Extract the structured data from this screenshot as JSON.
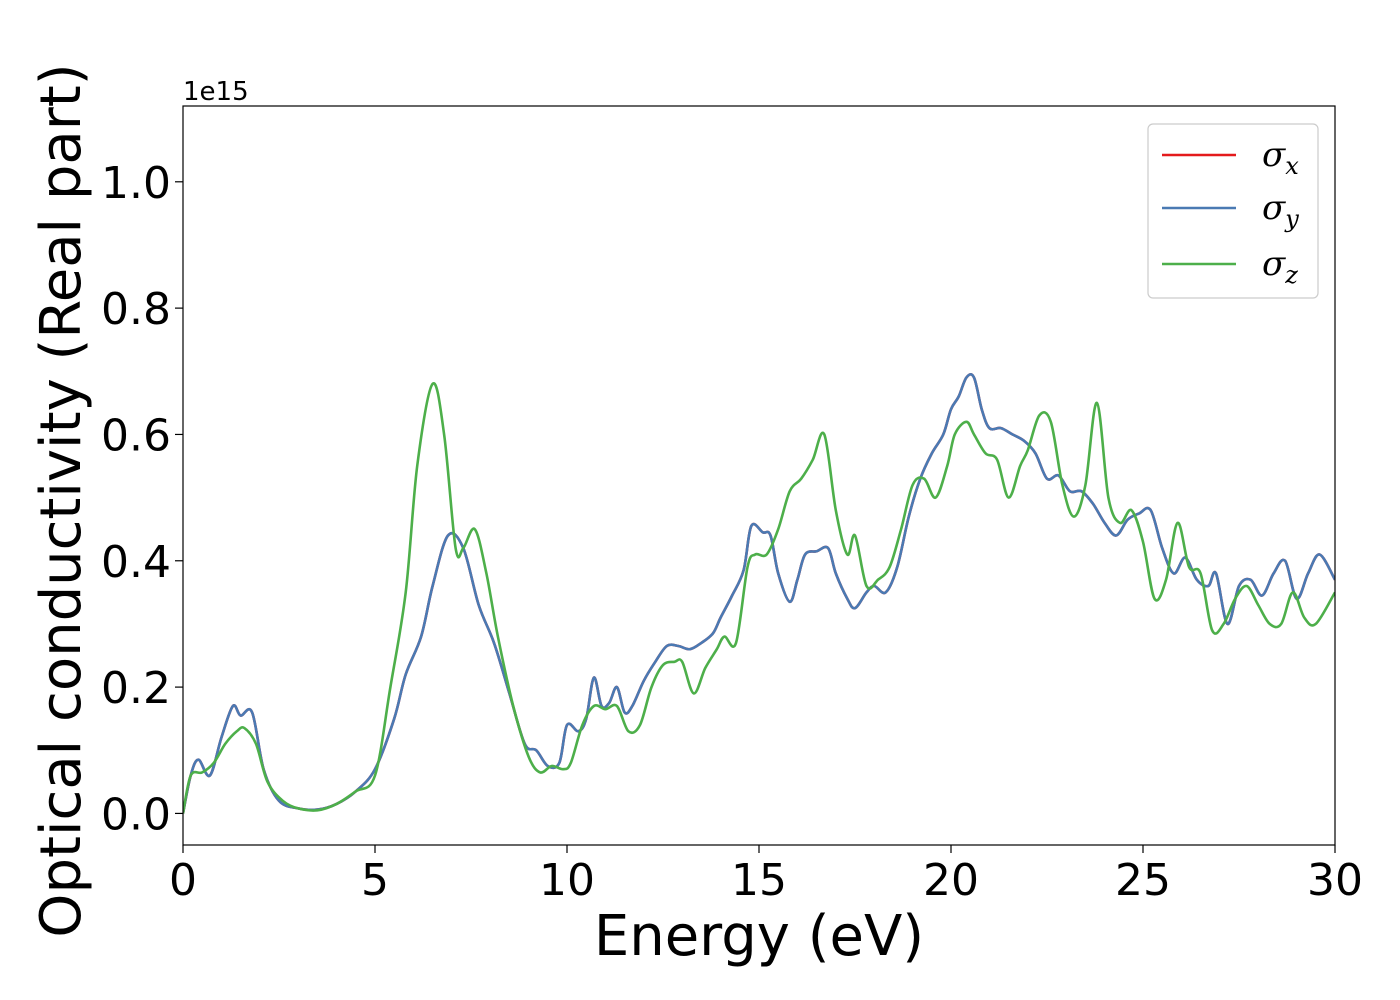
{
  "chart_data": {
    "type": "line",
    "xlabel": "Energy (eV)",
    "ylabel": "Optical conductivity (Real part)",
    "y_offset_text": "1e15",
    "xlim": [
      0,
      30
    ],
    "ylim": [
      -0.05,
      1.12
    ],
    "x_ticks": [
      0,
      5,
      10,
      15,
      20,
      25,
      30
    ],
    "x_tick_labels": [
      "0",
      "5",
      "10",
      "15",
      "20",
      "25",
      "30"
    ],
    "y_ticks": [
      0.0,
      0.2,
      0.4,
      0.6,
      0.8,
      1.0
    ],
    "y_tick_labels": [
      "0.0",
      "0.2",
      "0.4",
      "0.6",
      "0.8",
      "1.0"
    ],
    "grid": false,
    "legend_position": "top-right",
    "series": [
      {
        "name": "σ",
        "sub": "x",
        "color": "#e41a1c",
        "drawn_under": true,
        "x": [
          0,
          0.2,
          0.4,
          0.7,
          1.0,
          1.3,
          1.5,
          1.8,
          2.1,
          2.5,
          3.0,
          3.5,
          4.0,
          4.5,
          5.0,
          5.5,
          5.8,
          6.2,
          6.5,
          6.9,
          7.3,
          7.7,
          8.1,
          8.5,
          8.9,
          9.2,
          9.5,
          9.8,
          10.0,
          10.3,
          10.5,
          10.7,
          10.9,
          11.1,
          11.3,
          11.5,
          11.7,
          12.0,
          12.3,
          12.6,
          12.9,
          13.2,
          13.5,
          13.8,
          14.0,
          14.3,
          14.6,
          14.8,
          15.1,
          15.3,
          15.5,
          15.8,
          16.0,
          16.2,
          16.5,
          16.8,
          17.0,
          17.3,
          17.5,
          17.8,
          18.0,
          18.3,
          18.6,
          18.9,
          19.2,
          19.5,
          19.8,
          20.0,
          20.2,
          20.4,
          20.6,
          20.8,
          21.0,
          21.3,
          21.6,
          21.9,
          22.2,
          22.5,
          22.8,
          23.1,
          23.4,
          23.7,
          24.0,
          24.3,
          24.6,
          24.9,
          25.2,
          25.5,
          25.8,
          26.1,
          26.4,
          26.7,
          26.9,
          27.2,
          27.5,
          27.8,
          28.1,
          28.4,
          28.7,
          29.0,
          29.3,
          29.6,
          30.0
        ],
        "y": [
          0.0,
          0.06,
          0.085,
          0.06,
          0.12,
          0.17,
          0.155,
          0.16,
          0.07,
          0.02,
          0.008,
          0.006,
          0.015,
          0.035,
          0.07,
          0.15,
          0.22,
          0.28,
          0.36,
          0.44,
          0.42,
          0.33,
          0.27,
          0.19,
          0.11,
          0.1,
          0.075,
          0.08,
          0.14,
          0.13,
          0.15,
          0.215,
          0.17,
          0.175,
          0.2,
          0.16,
          0.17,
          0.21,
          0.24,
          0.265,
          0.265,
          0.26,
          0.27,
          0.285,
          0.31,
          0.345,
          0.385,
          0.455,
          0.445,
          0.44,
          0.38,
          0.335,
          0.37,
          0.41,
          0.415,
          0.42,
          0.38,
          0.34,
          0.325,
          0.35,
          0.36,
          0.35,
          0.39,
          0.47,
          0.53,
          0.57,
          0.6,
          0.64,
          0.66,
          0.69,
          0.69,
          0.64,
          0.61,
          0.61,
          0.6,
          0.59,
          0.57,
          0.53,
          0.535,
          0.51,
          0.51,
          0.49,
          0.46,
          0.44,
          0.465,
          0.475,
          0.48,
          0.42,
          0.38,
          0.405,
          0.37,
          0.36,
          0.38,
          0.3,
          0.36,
          0.37,
          0.345,
          0.38,
          0.4,
          0.34,
          0.38,
          0.41,
          0.37
        ]
      },
      {
        "name": "σ",
        "sub": "y",
        "color": "#4a7ab3",
        "x": [
          0,
          0.2,
          0.4,
          0.7,
          1.0,
          1.3,
          1.5,
          1.8,
          2.1,
          2.5,
          3.0,
          3.5,
          4.0,
          4.5,
          5.0,
          5.5,
          5.8,
          6.2,
          6.5,
          6.9,
          7.3,
          7.7,
          8.1,
          8.5,
          8.9,
          9.2,
          9.5,
          9.8,
          10.0,
          10.3,
          10.5,
          10.7,
          10.9,
          11.1,
          11.3,
          11.5,
          11.7,
          12.0,
          12.3,
          12.6,
          12.9,
          13.2,
          13.5,
          13.8,
          14.0,
          14.3,
          14.6,
          14.8,
          15.1,
          15.3,
          15.5,
          15.8,
          16.0,
          16.2,
          16.5,
          16.8,
          17.0,
          17.3,
          17.5,
          17.8,
          18.0,
          18.3,
          18.6,
          18.9,
          19.2,
          19.5,
          19.8,
          20.0,
          20.2,
          20.4,
          20.6,
          20.8,
          21.0,
          21.3,
          21.6,
          21.9,
          22.2,
          22.5,
          22.8,
          23.1,
          23.4,
          23.7,
          24.0,
          24.3,
          24.6,
          24.9,
          25.2,
          25.5,
          25.8,
          26.1,
          26.4,
          26.7,
          26.9,
          27.2,
          27.5,
          27.8,
          28.1,
          28.4,
          28.7,
          29.0,
          29.3,
          29.6,
          30.0
        ],
        "y": [
          0.0,
          0.06,
          0.085,
          0.06,
          0.12,
          0.17,
          0.155,
          0.16,
          0.07,
          0.02,
          0.008,
          0.006,
          0.015,
          0.035,
          0.07,
          0.15,
          0.22,
          0.28,
          0.36,
          0.44,
          0.42,
          0.33,
          0.27,
          0.19,
          0.11,
          0.1,
          0.075,
          0.08,
          0.14,
          0.13,
          0.15,
          0.215,
          0.17,
          0.175,
          0.2,
          0.16,
          0.17,
          0.21,
          0.24,
          0.265,
          0.265,
          0.26,
          0.27,
          0.285,
          0.31,
          0.345,
          0.385,
          0.455,
          0.445,
          0.44,
          0.38,
          0.335,
          0.37,
          0.41,
          0.415,
          0.42,
          0.38,
          0.34,
          0.325,
          0.35,
          0.36,
          0.35,
          0.39,
          0.47,
          0.53,
          0.57,
          0.6,
          0.64,
          0.66,
          0.69,
          0.69,
          0.64,
          0.61,
          0.61,
          0.6,
          0.59,
          0.57,
          0.53,
          0.535,
          0.51,
          0.51,
          0.49,
          0.46,
          0.44,
          0.465,
          0.475,
          0.48,
          0.42,
          0.38,
          0.405,
          0.37,
          0.36,
          0.38,
          0.3,
          0.36,
          0.37,
          0.345,
          0.38,
          0.4,
          0.34,
          0.38,
          0.41,
          0.37
        ]
      },
      {
        "name": "σ",
        "sub": "z",
        "color": "#4daf4a",
        "x": [
          0,
          0.2,
          0.5,
          0.8,
          1.1,
          1.4,
          1.6,
          1.9,
          2.2,
          2.6,
          3.0,
          3.5,
          4.0,
          4.5,
          5.0,
          5.4,
          5.8,
          6.1,
          6.5,
          6.8,
          7.1,
          7.3,
          7.6,
          7.9,
          8.2,
          8.6,
          9.0,
          9.3,
          9.6,
          9.9,
          10.1,
          10.4,
          10.7,
          11.0,
          11.3,
          11.6,
          11.9,
          12.2,
          12.5,
          12.8,
          13.0,
          13.3,
          13.6,
          13.9,
          14.1,
          14.4,
          14.7,
          14.9,
          15.2,
          15.5,
          15.8,
          16.1,
          16.4,
          16.7,
          17.0,
          17.3,
          17.5,
          17.8,
          18.1,
          18.4,
          18.7,
          19.0,
          19.3,
          19.6,
          19.9,
          20.1,
          20.4,
          20.6,
          20.9,
          21.2,
          21.5,
          21.8,
          22.0,
          22.3,
          22.6,
          22.9,
          23.2,
          23.5,
          23.8,
          24.1,
          24.4,
          24.7,
          25.0,
          25.3,
          25.6,
          25.9,
          26.2,
          26.5,
          26.8,
          27.1,
          27.4,
          27.7,
          28.0,
          28.3,
          28.6,
          28.9,
          29.2,
          29.5,
          30.0
        ],
        "y": [
          0.0,
          0.06,
          0.065,
          0.08,
          0.11,
          0.13,
          0.135,
          0.11,
          0.05,
          0.02,
          0.008,
          0.005,
          0.015,
          0.035,
          0.06,
          0.2,
          0.35,
          0.55,
          0.68,
          0.6,
          0.42,
          0.42,
          0.45,
          0.38,
          0.28,
          0.17,
          0.09,
          0.065,
          0.075,
          0.07,
          0.08,
          0.14,
          0.17,
          0.165,
          0.17,
          0.13,
          0.14,
          0.2,
          0.235,
          0.24,
          0.24,
          0.19,
          0.23,
          0.26,
          0.28,
          0.27,
          0.39,
          0.41,
          0.41,
          0.45,
          0.51,
          0.53,
          0.56,
          0.6,
          0.48,
          0.41,
          0.44,
          0.36,
          0.37,
          0.39,
          0.45,
          0.52,
          0.53,
          0.5,
          0.55,
          0.6,
          0.62,
          0.6,
          0.57,
          0.56,
          0.5,
          0.55,
          0.575,
          0.63,
          0.62,
          0.52,
          0.47,
          0.52,
          0.65,
          0.5,
          0.46,
          0.48,
          0.43,
          0.34,
          0.37,
          0.46,
          0.39,
          0.38,
          0.29,
          0.3,
          0.34,
          0.36,
          0.33,
          0.3,
          0.3,
          0.35,
          0.31,
          0.3,
          0.35
        ]
      }
    ]
  }
}
